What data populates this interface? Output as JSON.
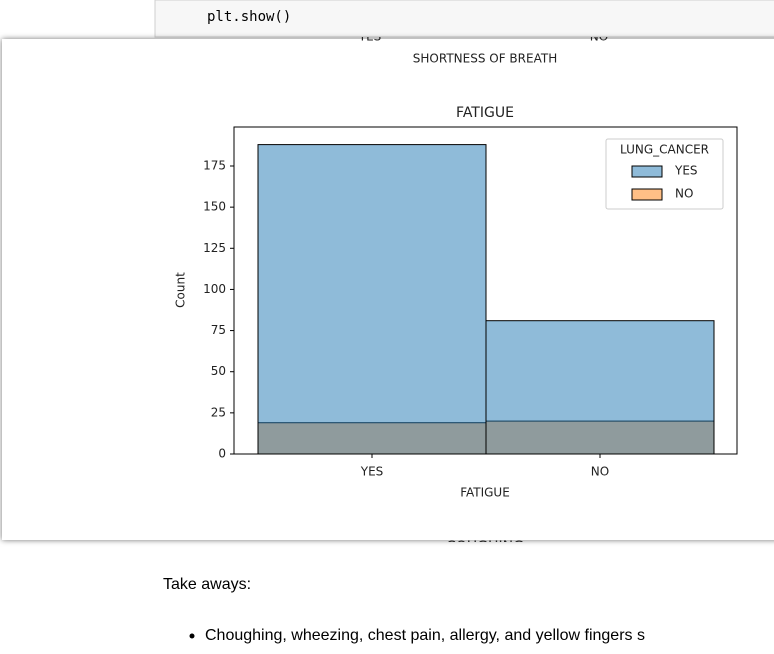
{
  "code": "plt.show()",
  "previous_chart": {
    "categories": [
      "YES",
      "NO"
    ],
    "xlabel": "SHORTNESS OF BREATH"
  },
  "chart_data": {
    "type": "bar",
    "title": "FATIGUE",
    "xlabel": "FATIGUE",
    "ylabel": "Count",
    "categories": [
      "YES",
      "NO"
    ],
    "series": [
      {
        "name": "YES",
        "color": "#1f77b4",
        "values": [
          188,
          81
        ]
      },
      {
        "name": "NO",
        "color": "#ff7f0e",
        "values": [
          19,
          20
        ]
      }
    ],
    "legend_title": "LUNG_CANCER",
    "legend": "upper right",
    "ylim": [
      0,
      198.7
    ],
    "yticks": [
      0,
      25,
      50,
      75,
      100,
      125,
      150,
      175
    ],
    "grid": false
  },
  "next_chart_title": "COUGHING",
  "markdown": {
    "heading": "Take aways:",
    "bullets": [
      "Choughing, wheezing, chest pain, allergy, and yellow fingers s"
    ]
  }
}
